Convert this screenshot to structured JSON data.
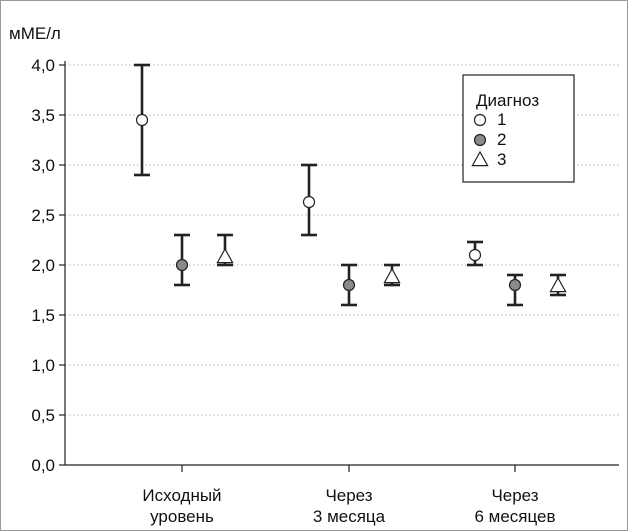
{
  "chart_data": {
    "type": "scatter",
    "ylabel": "мМЕ/л",
    "ylim": [
      0,
      4
    ],
    "yticks": [
      "0,0",
      "0,5",
      "1,0",
      "1,5",
      "2,0",
      "2,5",
      "3,0",
      "3,5",
      "4,0"
    ],
    "categories": [
      [
        "Исходный",
        "уровень"
      ],
      [
        "Через",
        "3 месяца"
      ],
      [
        "Через",
        "6 месяцев"
      ]
    ],
    "legend": {
      "title": "Диагноз",
      "placement": "top-right"
    },
    "grid": "horizontal-dotted",
    "series": [
      {
        "name": "1",
        "marker": "circle-open",
        "color": "#ffffff",
        "values": [
          3.45,
          2.63,
          2.1
        ],
        "lower": [
          2.9,
          2.3,
          2.0
        ],
        "upper": [
          4.0,
          3.0,
          2.23
        ]
      },
      {
        "name": "2",
        "marker": "circle-filled",
        "color": "#8a8a8a",
        "values": [
          2.0,
          1.8,
          1.8
        ],
        "lower": [
          1.8,
          1.6,
          1.6
        ],
        "upper": [
          2.3,
          2.0,
          1.9
        ]
      },
      {
        "name": "3",
        "marker": "triangle-open",
        "color": "#ffffff",
        "values": [
          2.08,
          1.88,
          1.79
        ],
        "lower": [
          2.0,
          1.8,
          1.7
        ],
        "upper": [
          2.3,
          2.0,
          1.9
        ]
      }
    ]
  }
}
